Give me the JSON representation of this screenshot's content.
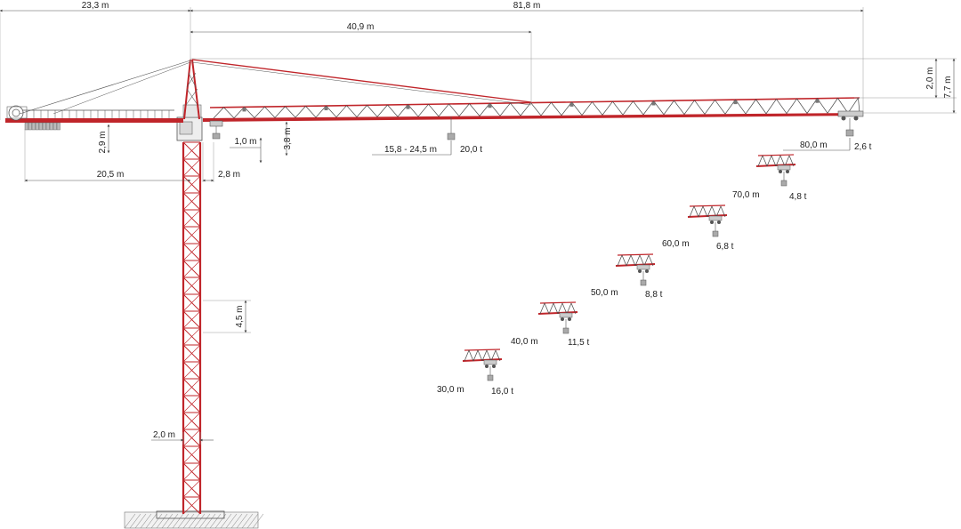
{
  "colors": {
    "steel": "#c0252a",
    "lacing": "#444444",
    "dimension": "#555555",
    "text": "#222222"
  },
  "dimensions": {
    "counter_jib_length": "23,3 m",
    "jib_length": "81,8 m",
    "pendant_position": "40,9 m",
    "pivot_height_top": "2,0 m",
    "tower_top_height": "7,7 m",
    "counter_jib_height": "2,9 m",
    "trolley_offset": "1,0 m",
    "jib_depth": "3,8 m",
    "counterweight_radius": "20,5 m",
    "min_radius": "2,8 m",
    "mast_section": "4,5 m",
    "mast_width": "2,0 m"
  },
  "load_chart": [
    {
      "radius": "15,8 - 24,5 m",
      "load": "20,0 t"
    },
    {
      "radius": "80,0 m",
      "load": "2,6 t"
    },
    {
      "radius": "70,0 m",
      "load": "4,8 t"
    },
    {
      "radius": "60,0 m",
      "load": "6,8 t"
    },
    {
      "radius": "50,0 m",
      "load": "8,8 t"
    },
    {
      "radius": "40,0 m",
      "load": "11,5 t"
    },
    {
      "radius": "30,0 m",
      "load": "16,0 t"
    }
  ]
}
